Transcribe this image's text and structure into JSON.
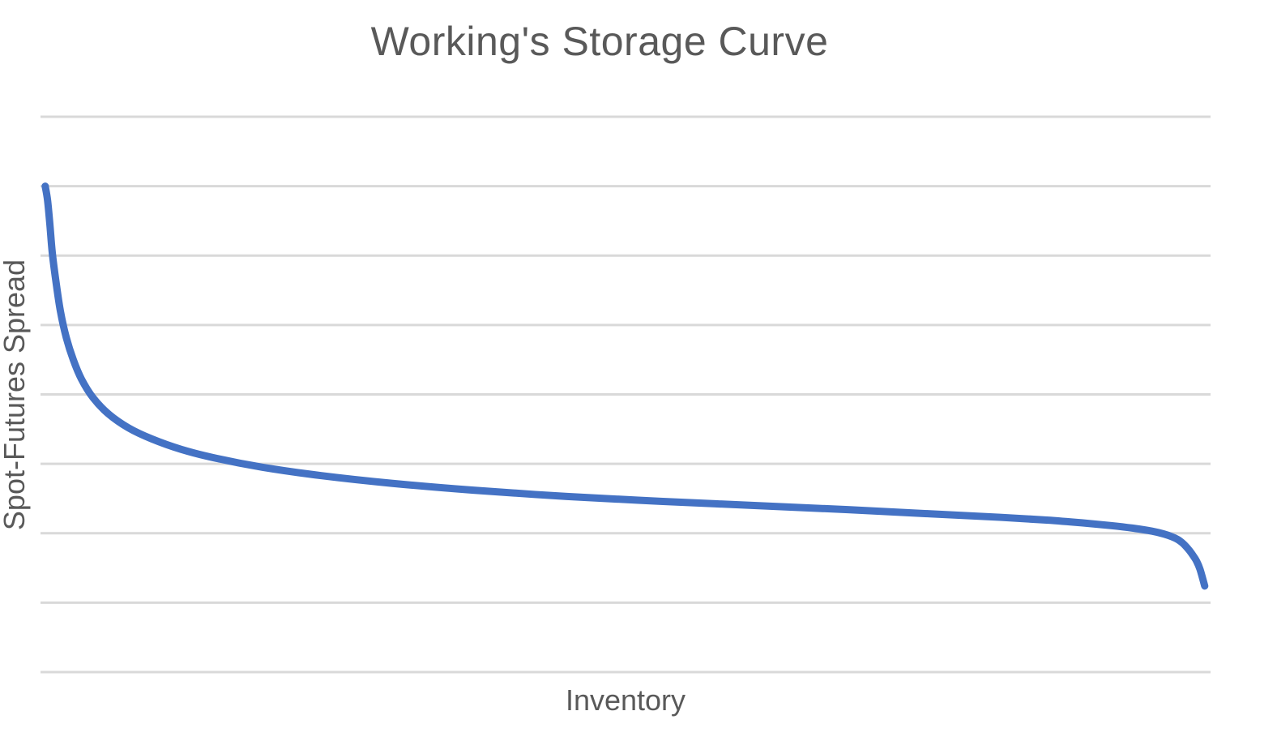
{
  "chart_data": {
    "type": "line",
    "title": "Working's Storage Curve",
    "xlabel": "Inventory",
    "ylabel": "Spot-Futures Spread",
    "ylim": [
      0,
      8
    ],
    "xlim": [
      0,
      1
    ],
    "grid": true,
    "tick_labels_shown": false,
    "line_color": "#4472C4",
    "gridline_color": "#D9D9D9",
    "series": [
      {
        "x": [
          0.004,
          0.006,
          0.008,
          0.01,
          0.013,
          0.017,
          0.022,
          0.028,
          0.035,
          0.045,
          0.058,
          0.075,
          0.095,
          0.12,
          0.15,
          0.19,
          0.24,
          0.3,
          0.37,
          0.45,
          0.53,
          0.61,
          0.69,
          0.76,
          0.82,
          0.86,
          0.89,
          0.915,
          0.935,
          0.95,
          0.96,
          0.967,
          0.972,
          0.976,
          0.979,
          0.982,
          0.985,
          0.988,
          0.991,
          0.995
        ],
        "y": [
          7.0,
          6.8,
          6.45,
          6.05,
          5.65,
          5.2,
          4.82,
          4.5,
          4.22,
          3.95,
          3.72,
          3.52,
          3.36,
          3.21,
          3.08,
          2.95,
          2.83,
          2.72,
          2.62,
          2.53,
          2.46,
          2.4,
          2.34,
          2.28,
          2.23,
          2.19,
          2.15,
          2.11,
          2.07,
          2.03,
          1.99,
          1.95,
          1.91,
          1.86,
          1.81,
          1.75,
          1.68,
          1.6,
          1.48,
          1.24
        ]
      }
    ]
  }
}
